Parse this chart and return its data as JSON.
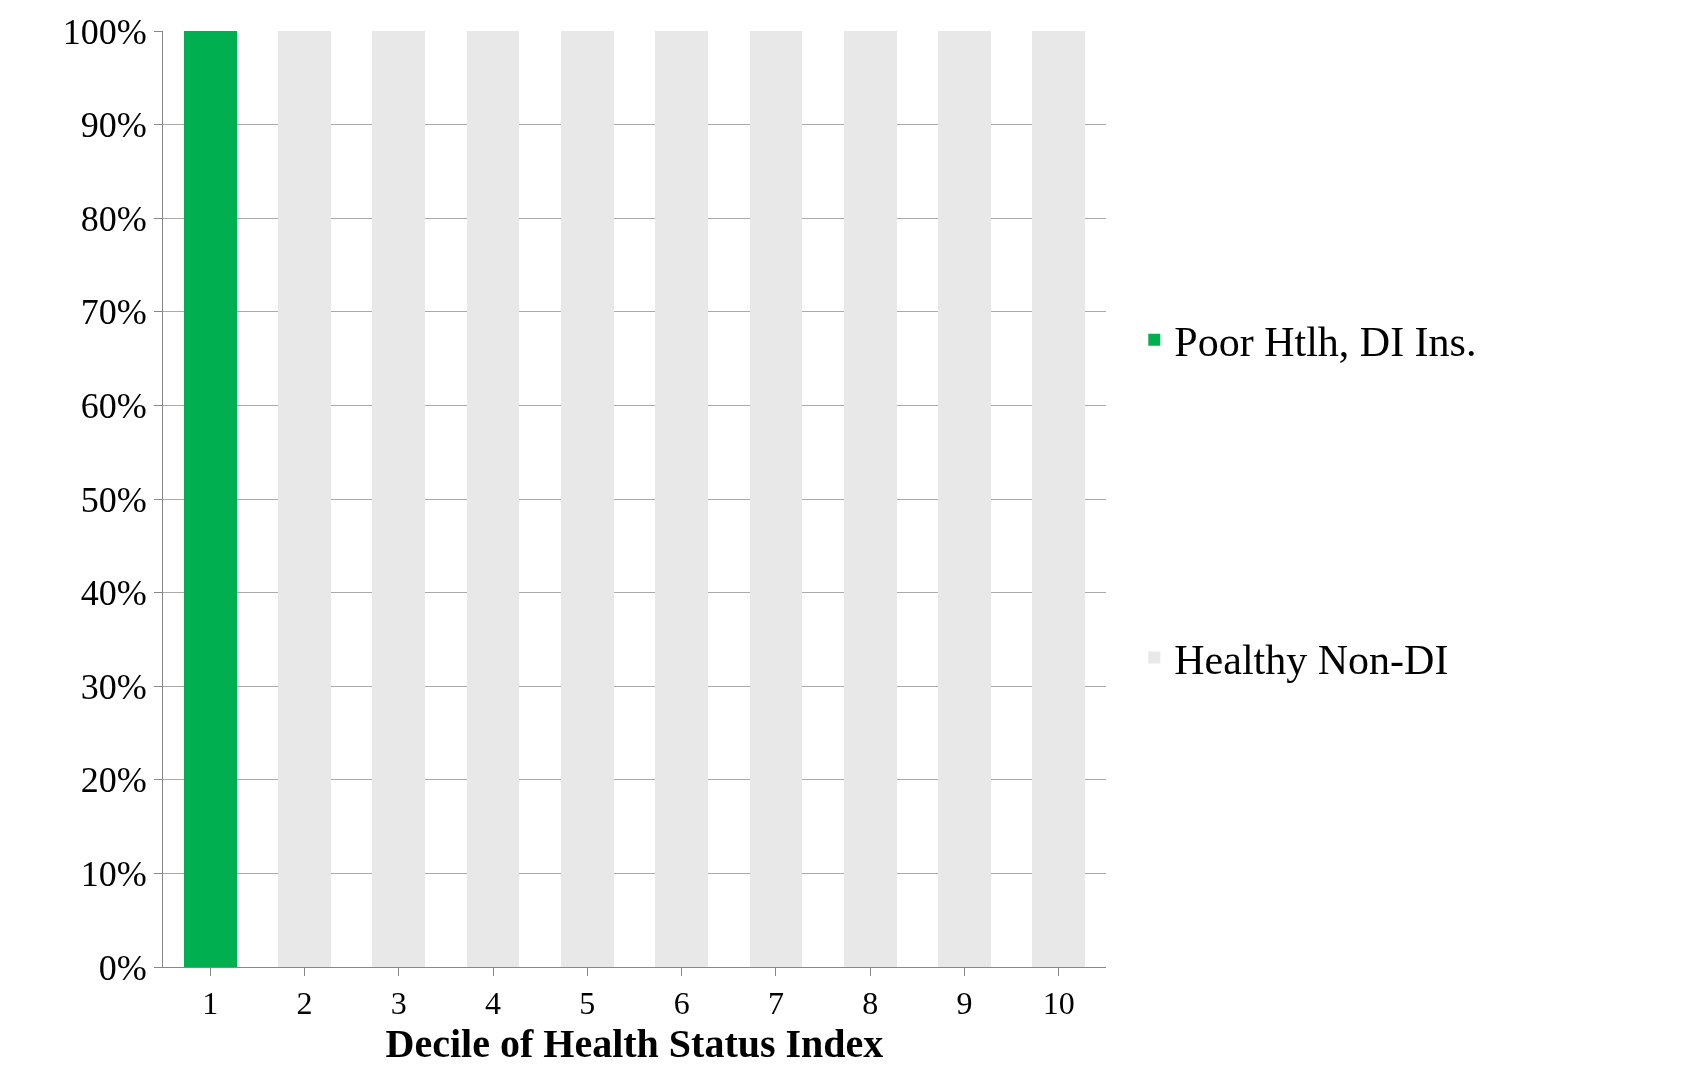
{
  "chart_data": {
    "type": "bar",
    "stacked": true,
    "xlabel": "Decile of Health Status Index",
    "categories": [
      "1",
      "2",
      "3",
      "4",
      "5",
      "6",
      "7",
      "8",
      "9",
      "10"
    ],
    "series": [
      {
        "name": "Poor Htlh, DI Ins.",
        "color": "#00b050",
        "values": [
          100,
          0,
          0,
          0,
          0,
          0,
          0,
          0,
          0,
          0
        ]
      },
      {
        "name": "Healthy Non-DI",
        "color": "#e8e8e8",
        "values": [
          0,
          100,
          100,
          100,
          100,
          100,
          100,
          100,
          100,
          100
        ]
      }
    ],
    "ylim": [
      0,
      100
    ],
    "yticks": [
      {
        "value": 0,
        "label": "0%"
      },
      {
        "value": 10,
        "label": "10%"
      },
      {
        "value": 20,
        "label": "20%"
      },
      {
        "value": 30,
        "label": "30%"
      },
      {
        "value": 40,
        "label": "40%"
      },
      {
        "value": 50,
        "label": "50%"
      },
      {
        "value": 60,
        "label": "60%"
      },
      {
        "value": 70,
        "label": "70%"
      },
      {
        "value": 80,
        "label": "80%"
      },
      {
        "value": 90,
        "label": "90%"
      },
      {
        "value": 100,
        "label": "100%"
      }
    ],
    "grid": "y",
    "legend": "right"
  }
}
